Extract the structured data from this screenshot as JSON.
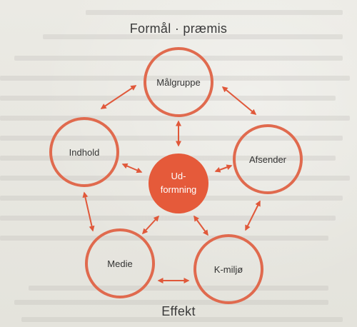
{
  "diagram": {
    "title": "Formål · præmis",
    "footer": "Effekt",
    "center": {
      "line1": "Ud-",
      "line2": "formning"
    },
    "nodes": {
      "malgruppe": "Målgruppe",
      "afsender": "Afsender",
      "kmiljo": "K-miljø",
      "medie": "Medie",
      "indhold": "Indhold"
    },
    "colors": {
      "accent": "#e0583a",
      "ring": "#e06a4e",
      "center_fill": "#e55a3a"
    }
  }
}
